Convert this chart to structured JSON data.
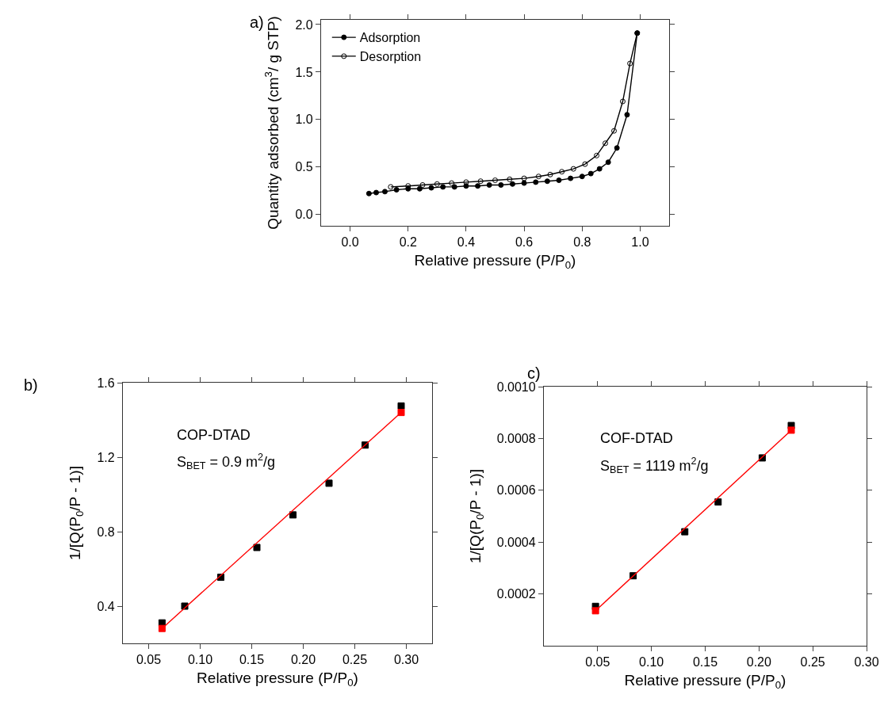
{
  "chart_data": [
    {
      "type": "line",
      "xlabel": "Relative pressure (P/P$_{0}$)",
      "ylabel": "Quantity adsorbed (cm$^{3}$/ g STP)",
      "annotations": [
        "a)"
      ],
      "xlim": [
        -0.1,
        1.1
      ],
      "ylim": [
        -0.12,
        2.05
      ],
      "xticks": [
        {
          "value": 0,
          "label": "0.0"
        },
        0.2,
        0.4,
        0.6,
        0.8,
        {
          "value": 1,
          "label": "1.0"
        }
      ],
      "yticks": [
        {
          "value": 0,
          "label": "0.0"
        },
        0.5,
        {
          "value": 1,
          "label": "1.0"
        },
        1.5,
        {
          "value": 2,
          "label": "2.0"
        }
      ],
      "legend": "top left",
      "series": [
        {
          "name": "Adsorption",
          "color": "#000000",
          "marker": "circle",
          "x": [
            0.065,
            0.09,
            0.12,
            0.16,
            0.2,
            0.24,
            0.28,
            0.32,
            0.36,
            0.4,
            0.44,
            0.48,
            0.52,
            0.56,
            0.6,
            0.64,
            0.68,
            0.72,
            0.76,
            0.8,
            0.83,
            0.86,
            0.89,
            0.92,
            0.955,
            0.99
          ],
          "values": [
            0.22,
            0.23,
            0.24,
            0.26,
            0.27,
            0.27,
            0.28,
            0.29,
            0.29,
            0.3,
            0.3,
            0.31,
            0.31,
            0.32,
            0.33,
            0.34,
            0.35,
            0.36,
            0.38,
            0.4,
            0.43,
            0.48,
            0.55,
            0.7,
            1.05,
            1.91
          ]
        },
        {
          "name": "Desorption",
          "color": "#000000",
          "marker": "circle-open",
          "x": [
            0.99,
            0.965,
            0.94,
            0.91,
            0.88,
            0.85,
            0.81,
            0.77,
            0.73,
            0.69,
            0.65,
            0.6,
            0.55,
            0.5,
            0.45,
            0.4,
            0.35,
            0.3,
            0.25,
            0.2,
            0.14
          ],
          "values": [
            1.91,
            1.59,
            1.19,
            0.88,
            0.75,
            0.62,
            0.53,
            0.48,
            0.45,
            0.42,
            0.4,
            0.38,
            0.37,
            0.36,
            0.35,
            0.34,
            0.33,
            0.32,
            0.31,
            0.3,
            0.29
          ]
        }
      ]
    },
    {
      "type": "scatter",
      "xlabel": "Relative pressure (P/P$_{0}$)",
      "ylabel": "1/[Q(P$_{0}$/P - 1)]",
      "annotations": [
        "b)",
        "COP-DTAD",
        "S$_{BET}$ = 0.9 m$^{2}$/g"
      ],
      "xlim": [
        0.025,
        0.325
      ],
      "ylim": [
        0.2,
        1.6
      ],
      "xticks": [
        0.05,
        {
          "value": 0.1,
          "label": "0.10"
        },
        0.15,
        {
          "value": 0.2,
          "label": "0.20"
        },
        0.25,
        {
          "value": 0.3,
          "label": "0.30"
        }
      ],
      "yticks": [
        0.4,
        0.8,
        1.2,
        1.6
      ],
      "marker": "square",
      "series": [
        {
          "color": "#000000",
          "x": [
            0.063,
            0.085,
            0.12,
            0.155,
            0.19,
            0.225,
            0.26,
            0.295
          ],
          "values": [
            0.31,
            0.4,
            0.555,
            0.715,
            0.89,
            1.06,
            1.265,
            1.475
          ]
        },
        {
          "type": "line",
          "color": "#ff0000",
          "x": [
            0.063,
            0.295
          ],
          "values": [
            0.28,
            1.44
          ]
        }
      ]
    },
    {
      "type": "scatter",
      "xlabel": "Relative pressure (P/P$_{0}$)",
      "ylabel": "1/[Q(P$_{0}$/P - 1)]",
      "annotations": [
        "c)",
        "COF-DTAD",
        "S$_{BET}$ = 1119 m$^{2}$/g"
      ],
      "xlim": [
        0.0,
        0.3
      ],
      "ylim": [
        0.0,
        0.001
      ],
      "xticks": [
        0.05,
        {
          "value": 0.1,
          "label": "0.10"
        },
        0.15,
        {
          "value": 0.2,
          "label": "0.20"
        },
        0.25,
        {
          "value": 0.3,
          "label": "0.30"
        }
      ],
      "yticks": [
        0.0002,
        0.0004,
        0.0006,
        0.0008,
        {
          "value": 0.001,
          "label": "0.0010"
        }
      ],
      "marker": "square",
      "series": [
        {
          "color": "#000000",
          "x": [
            0.048,
            0.083,
            0.131,
            0.162,
            0.203,
            0.23
          ],
          "values": [
            0.000152,
            0.00027,
            0.00044,
            0.000555,
            0.000725,
            0.00085
          ]
        },
        {
          "type": "line",
          "color": "#ff0000",
          "x": [
            0.048,
            0.23
          ],
          "values": [
            0.000135,
            0.000832
          ]
        }
      ]
    }
  ]
}
